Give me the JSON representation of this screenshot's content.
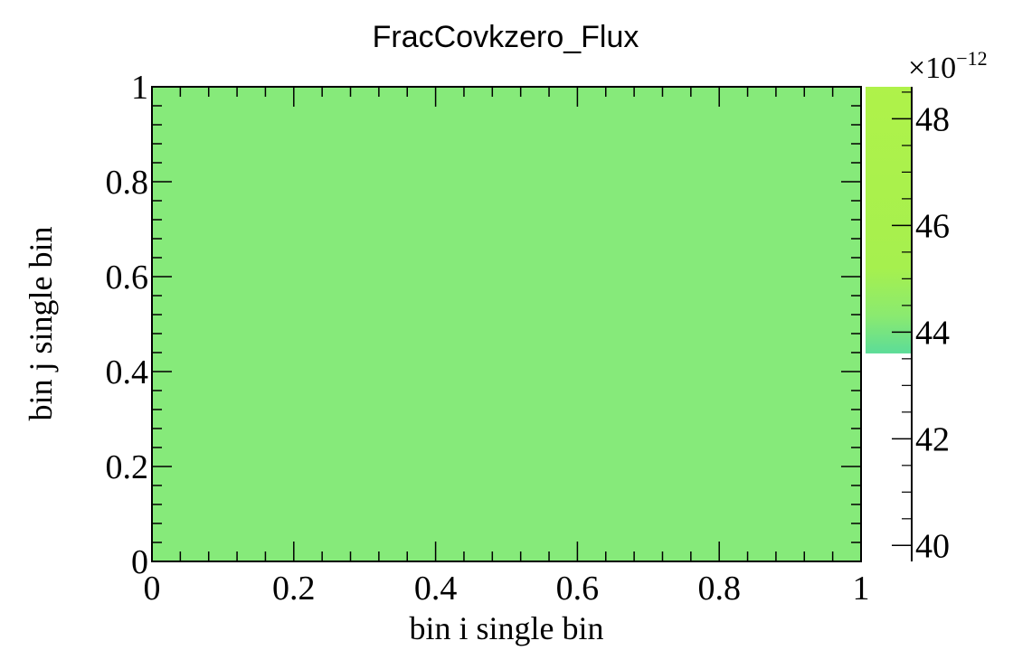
{
  "chart_data": {
    "type": "heatmap",
    "title": "FracCovkzero_Flux",
    "xlabel": "bin i single bin",
    "ylabel": "bin j single bin",
    "xlim": [
      0,
      1
    ],
    "ylim": [
      0,
      1
    ],
    "xticks": [
      "0",
      "0.2",
      "0.4",
      "0.6",
      "0.8",
      "1"
    ],
    "yticks": [
      "0",
      "0.2",
      "0.4",
      "0.6",
      "0.8",
      "1"
    ],
    "cells": [
      {
        "x": [
          0,
          1
        ],
        "y": [
          0,
          1
        ],
        "value": 45.0,
        "color": "#86ea7a"
      }
    ],
    "colorbar": {
      "range": [
        39.7,
        48.6
      ],
      "ticks": [
        "40",
        "42",
        "44",
        "46",
        "48"
      ],
      "tick_values": [
        40,
        42,
        44,
        46,
        48
      ],
      "exponent_label": "×10",
      "exponent_power": "−12",
      "filled_from": 43.6,
      "gradient": [
        {
          "value": 43.6,
          "color": "#5cdc98"
        },
        {
          "value": 44.3,
          "color": "#8aea70"
        },
        {
          "value": 45.2,
          "color": "#a6f04e"
        },
        {
          "value": 48.6,
          "color": "#aff24a"
        }
      ]
    }
  }
}
